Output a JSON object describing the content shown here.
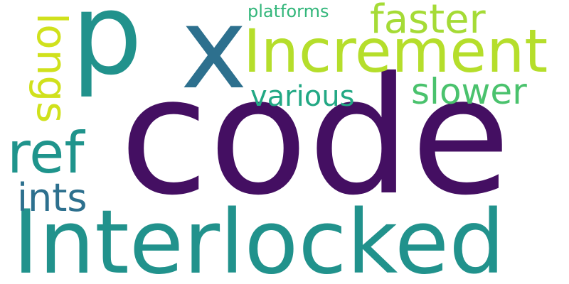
{
  "words": [
    {
      "text": "code",
      "color": "#440f62"
    },
    {
      "text": "Interlocked",
      "color": "#21928c"
    },
    {
      "text": "p",
      "color": "#21928c"
    },
    {
      "text": "x",
      "color": "#2d708e"
    },
    {
      "text": "Increment",
      "color": "#b5de2b"
    },
    {
      "text": "faster",
      "color": "#a5db36"
    },
    {
      "text": "slower",
      "color": "#4ac26d"
    },
    {
      "text": "various",
      "color": "#22a884"
    },
    {
      "text": "longs",
      "color": "#d0e11c"
    },
    {
      "text": "ref",
      "color": "#1f948c"
    },
    {
      "text": "ints",
      "color": "#2d708e"
    },
    {
      "text": "platforms",
      "color": "#32b67a"
    }
  ]
}
